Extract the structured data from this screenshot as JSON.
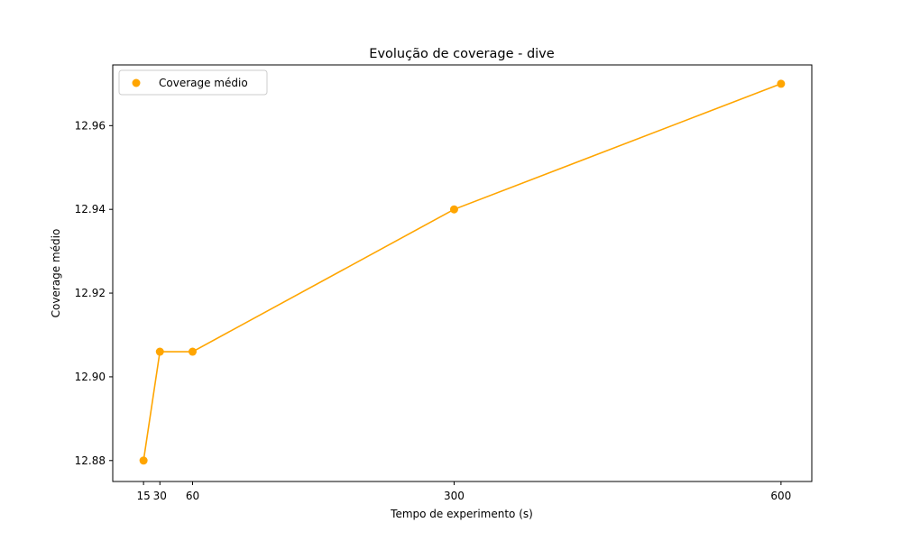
{
  "chart_data": {
    "type": "line",
    "title": "Evolução de coverage - dive",
    "xlabel": "Tempo de experimento (s)",
    "ylabel": "Coverage médio",
    "x": [
      15,
      30,
      60,
      300,
      600
    ],
    "x_tick_labels": [
      "15",
      "30",
      "60",
      "300",
      "600"
    ],
    "y_ticks": [
      12.88,
      12.9,
      12.92,
      12.94,
      12.96
    ],
    "y_tick_labels": [
      "12.88",
      "12.90",
      "12.92",
      "12.94",
      "12.96"
    ],
    "xlim": [
      -13.25,
      628.25
    ],
    "ylim": [
      12.875,
      12.9745
    ],
    "series": [
      {
        "name": "Coverage médio",
        "values": [
          12.88,
          12.906,
          12.906,
          12.94,
          12.97
        ]
      }
    ],
    "legend": "upper-left",
    "grid": false,
    "colors": {
      "series": "#ffa500",
      "axes": "#000000"
    }
  }
}
